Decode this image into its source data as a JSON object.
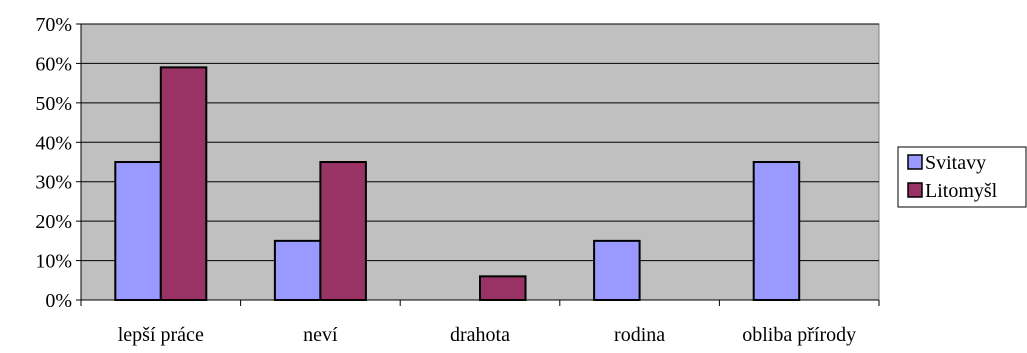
{
  "chart_data": {
    "type": "bar",
    "title": "",
    "xlabel": "",
    "ylabel": "",
    "categories": [
      "lepší práce",
      "neví",
      "drahota",
      "rodina",
      "obliba přírody"
    ],
    "series": [
      {
        "name": "Svitavy",
        "values": [
          35,
          15,
          0,
          15,
          35
        ]
      },
      {
        "name": "Litomyšl",
        "values": [
          59,
          35,
          6,
          0,
          0
        ]
      }
    ],
    "ylim": [
      0,
      70
    ],
    "ytick_step": 10,
    "ytick_labels": [
      "0%",
      "10%",
      "20%",
      "30%",
      "40%",
      "50%",
      "60%",
      "70%"
    ],
    "grid": true,
    "legend_position": "right",
    "colors": {
      "plot_background": "#c0c0c0",
      "series": [
        "#9999ff",
        "#993366"
      ],
      "gridline": "#000000",
      "bar_border": "#000000"
    }
  }
}
